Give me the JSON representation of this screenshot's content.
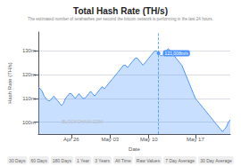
{
  "chart_data": {
    "type": "line",
    "title": "Total Hash Rate (TH/s)",
    "subtitle": "The estimated number of terahashes per second the bitcoin network is performing in the last 24 hours.",
    "xlabel": "Date",
    "ylabel": "Hash Rate (TH/s)",
    "categories": [
      null,
      null,
      null,
      null,
      null,
      null,
      null,
      null,
      null,
      null,
      null,
      null,
      null,
      null,
      null,
      null,
      null,
      "Apr 26",
      null,
      null,
      null,
      null,
      null,
      null,
      null,
      null,
      null,
      null,
      null,
      null,
      null,
      null,
      null,
      null,
      null,
      null,
      null,
      "May 03",
      null,
      null,
      null,
      null,
      null,
      null,
      null,
      null,
      null,
      null,
      null,
      null,
      null,
      null,
      null,
      null,
      null,
      null,
      null,
      "May 10",
      null,
      null,
      null,
      null,
      null,
      null,
      null,
      null,
      null,
      null,
      null,
      null,
      null,
      null,
      null,
      null,
      null,
      null,
      null,
      null,
      null,
      null,
      null,
      "May 17",
      null,
      null,
      null,
      null,
      null,
      null,
      null,
      null,
      null,
      null,
      null,
      null,
      null,
      null,
      null,
      null,
      null,
      null
    ],
    "values": [
      115,
      114,
      113,
      111,
      110,
      109,
      109,
      110,
      111,
      110,
      109,
      108,
      107,
      108,
      110,
      111,
      112,
      112,
      111,
      110,
      111,
      112,
      111,
      110,
      110,
      111,
      112,
      113,
      112,
      111,
      112,
      113,
      114,
      115,
      114,
      115,
      116,
      117,
      118,
      119,
      120,
      121,
      122,
      123,
      124,
      124,
      123,
      124,
      125,
      126,
      127,
      127,
      126,
      125,
      124,
      125,
      126,
      127,
      128,
      129,
      130,
      130,
      129,
      128,
      128,
      129,
      130,
      131,
      130,
      129,
      128,
      127,
      126,
      125,
      124,
      122,
      120,
      118,
      116,
      114,
      112,
      110,
      109,
      108,
      107,
      106,
      105,
      104,
      103,
      102,
      101,
      100,
      99,
      98,
      97,
      96,
      97,
      98,
      100,
      101
    ],
    "color": "#4d94ff",
    "ylim": [
      95,
      138
    ],
    "yticks": [
      {
        "value": 100,
        "label": "100m"
      },
      {
        "value": 110,
        "label": "110m"
      },
      {
        "value": 120,
        "label": "120m"
      },
      {
        "value": 130,
        "label": "130m"
      }
    ],
    "grid": true,
    "annotations": [
      {
        "text": "121,008m/s",
        "x": 62,
        "y": 129
      }
    ],
    "watermark": "BLOCKCHAIN.COM",
    "buttons": [
      "30 Days",
      "60 Days",
      "180 Days",
      "1 Year",
      "3 Years",
      "All Time",
      "Raw Values",
      "7 Day Average",
      "30 Day Average"
    ]
  }
}
